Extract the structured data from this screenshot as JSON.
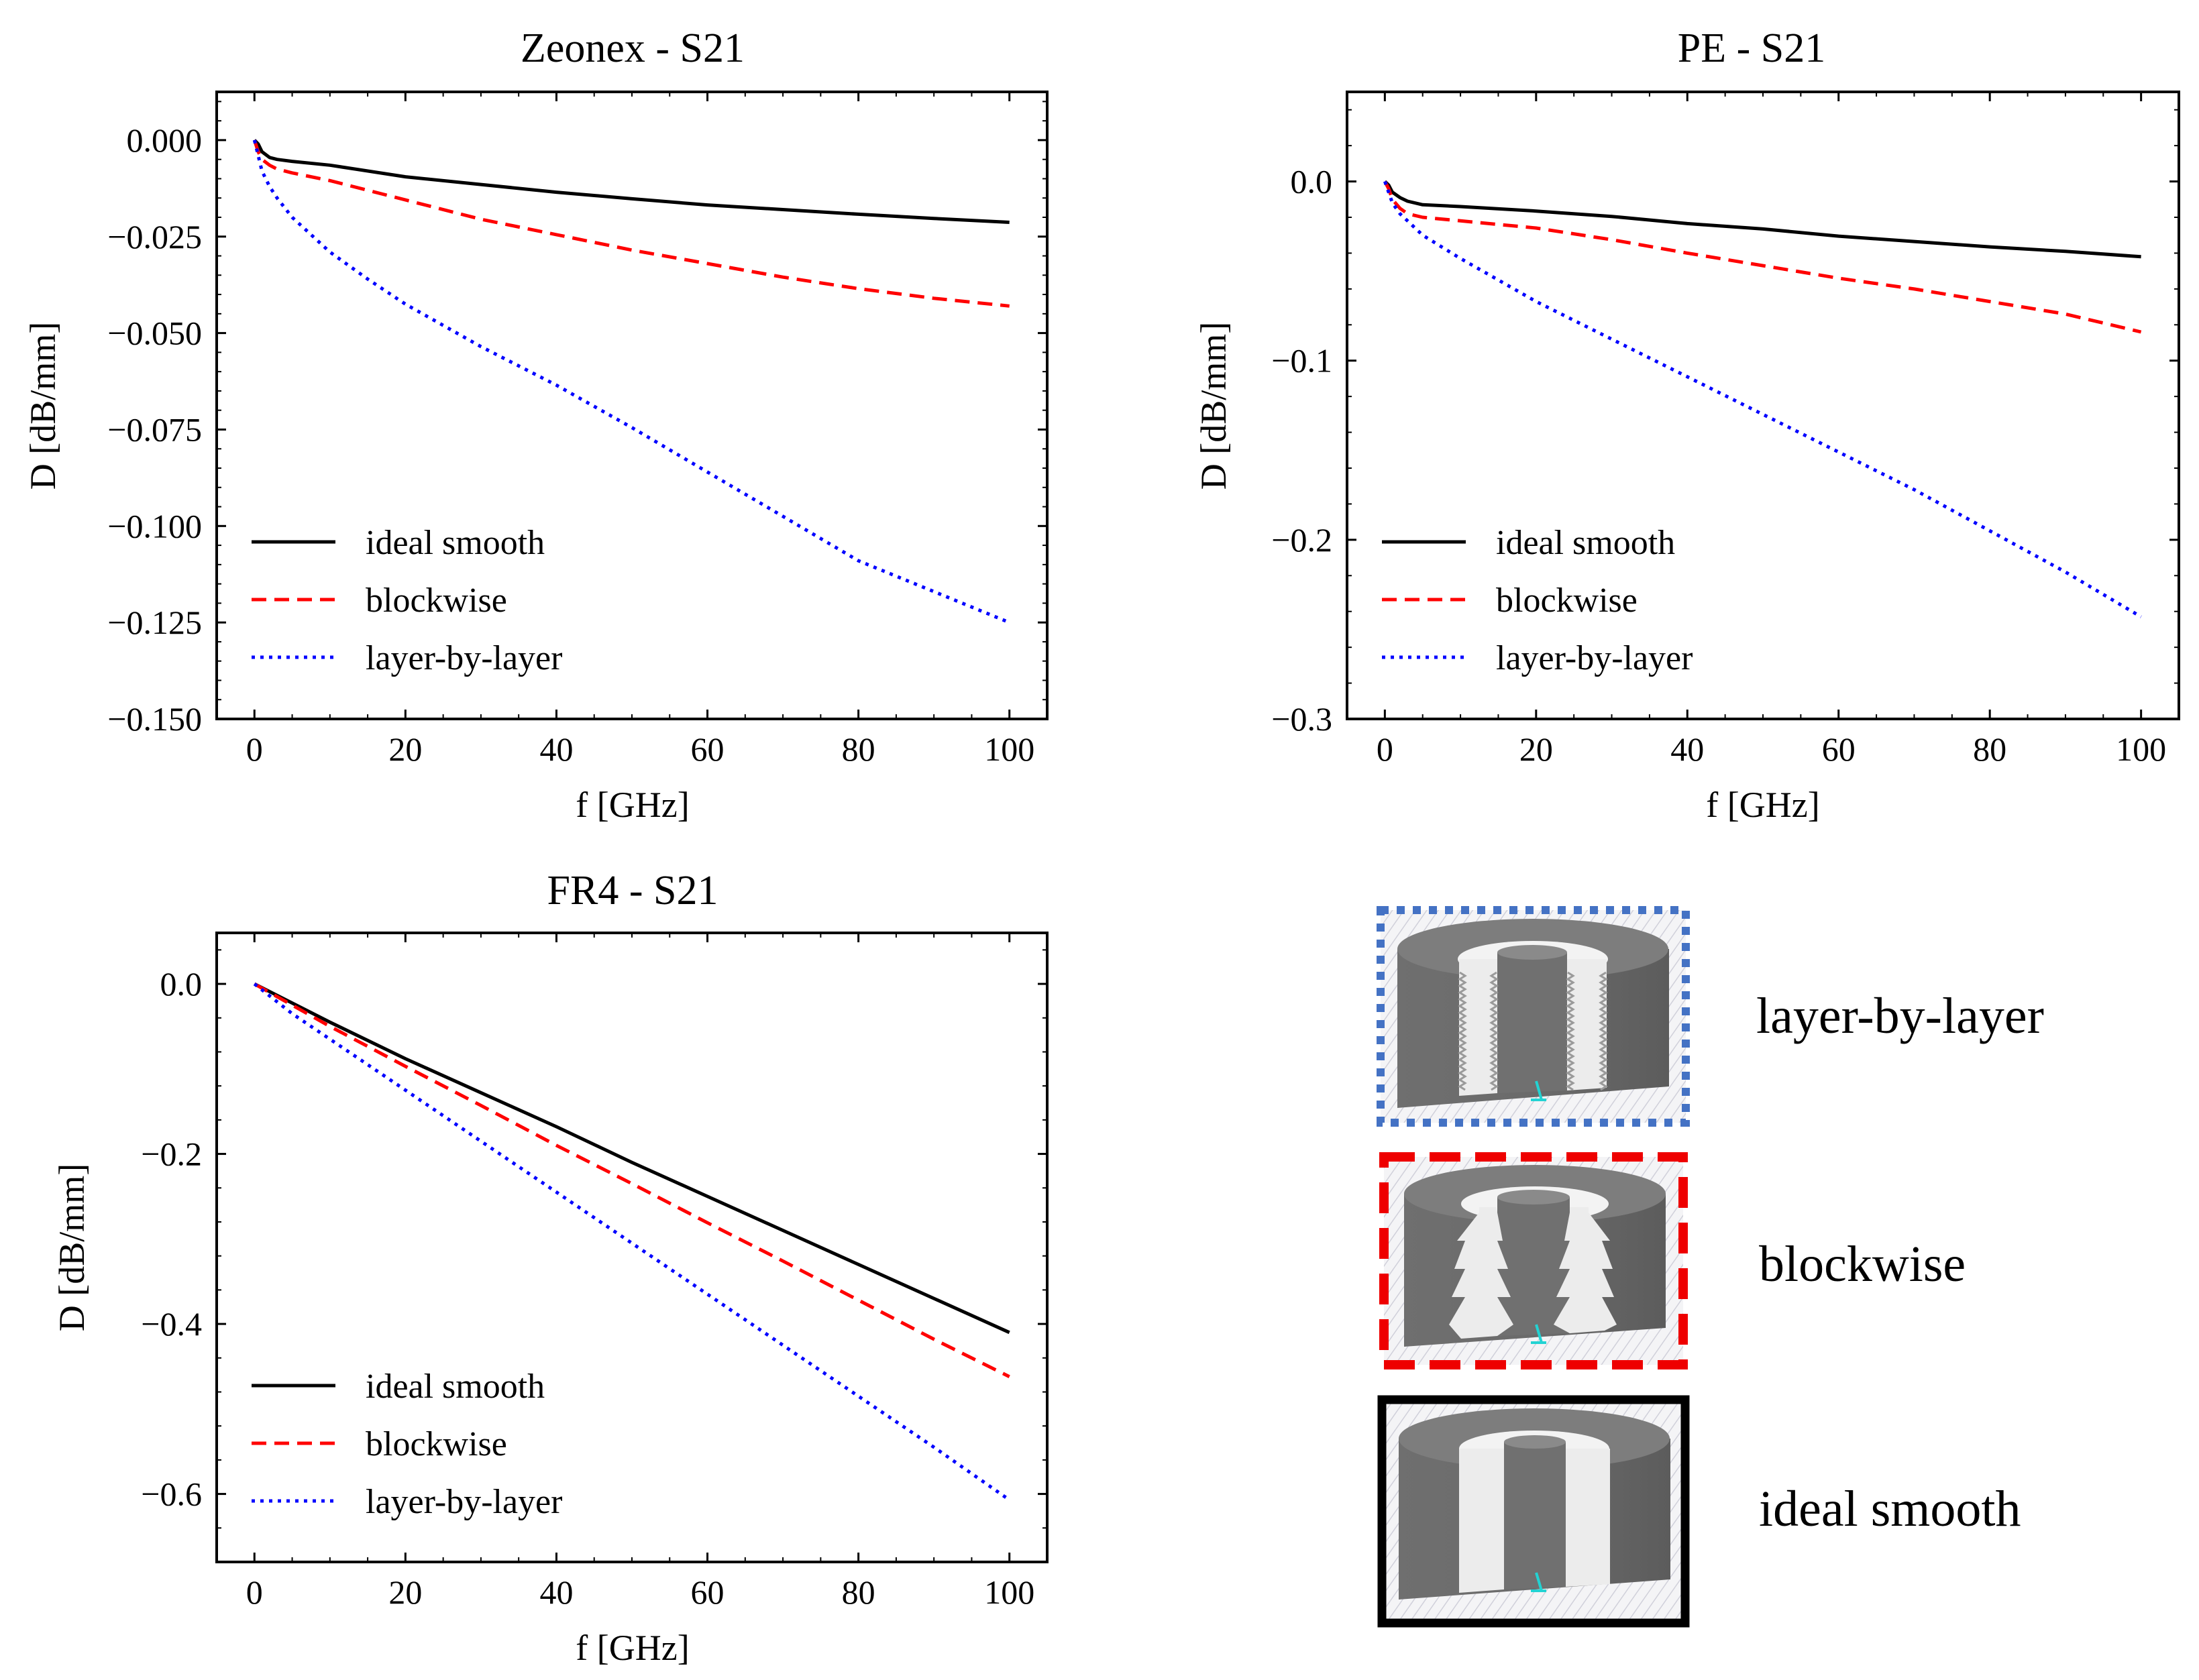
{
  "figure": {
    "legend_titles": {
      "layer": "layer-by-layer",
      "block": "blockwise",
      "ideal": "ideal smooth"
    },
    "series_styles": [
      {
        "name": "ideal smooth",
        "color": "#000000",
        "dash": "solid"
      },
      {
        "name": "blockwise",
        "color": "#ff0000",
        "dash": "dashed"
      },
      {
        "name": "layer-by-layer",
        "color": "#0000ff",
        "dash": "dotted"
      }
    ]
  },
  "chart_data": [
    {
      "type": "line",
      "title": "Zeonex - S21",
      "xlabel": "f [GHz]",
      "ylabel": "D [dB/mm]",
      "xlim": [
        -5,
        105
      ],
      "ylim": [
        -0.15,
        0.0125
      ],
      "xticks": [
        0,
        20,
        40,
        60,
        80,
        100
      ],
      "xtick_labels": [
        "0",
        "20",
        "40",
        "60",
        "80",
        "100"
      ],
      "yticks": [
        0.0,
        -0.025,
        -0.05,
        -0.075,
        -0.1,
        -0.125,
        -0.15
      ],
      "ytick_labels": [
        "0.000",
        "−0.025",
        "−0.050",
        "−0.075",
        "−0.100",
        "−0.125",
        "−0.150"
      ],
      "legend": "lower-left",
      "series": [
        {
          "name": "ideal smooth",
          "x": [
            0,
            0.5,
            1,
            2,
            3,
            5,
            10,
            20,
            30,
            40,
            50,
            60,
            70,
            80,
            90,
            100
          ],
          "y": [
            0,
            -0.001,
            -0.003,
            -0.0045,
            -0.005,
            -0.0055,
            -0.0065,
            -0.0095,
            -0.0115,
            -0.0135,
            -0.0152,
            -0.0168,
            -0.018,
            -0.0192,
            -0.0203,
            -0.0213
          ]
        },
        {
          "name": "blockwise",
          "x": [
            0,
            0.5,
            1,
            2,
            3,
            5,
            10,
            20,
            30,
            40,
            50,
            60,
            70,
            80,
            90,
            100
          ],
          "y": [
            0,
            -0.003,
            -0.005,
            -0.0065,
            -0.0075,
            -0.0085,
            -0.0105,
            -0.0155,
            -0.0205,
            -0.0245,
            -0.0285,
            -0.032,
            -0.0355,
            -0.0385,
            -0.041,
            -0.043
          ]
        },
        {
          "name": "layer-by-layer",
          "x": [
            0,
            0.5,
            1,
            2,
            3,
            5,
            10,
            15,
            20,
            30,
            40,
            50,
            60,
            70,
            80,
            90,
            100
          ],
          "y": [
            0,
            -0.004,
            -0.008,
            -0.012,
            -0.015,
            -0.02,
            -0.029,
            -0.036,
            -0.0425,
            -0.0535,
            -0.0635,
            -0.0745,
            -0.086,
            -0.0975,
            -0.109,
            -0.117,
            -0.125
          ]
        }
      ]
    },
    {
      "type": "line",
      "title": "PE - S21",
      "xlabel": "f [GHz]",
      "ylabel": "D [dB/mm]",
      "xlim": [
        -5,
        105
      ],
      "ylim": [
        -0.3,
        0.05
      ],
      "xticks": [
        0,
        20,
        40,
        60,
        80,
        100
      ],
      "xtick_labels": [
        "0",
        "20",
        "40",
        "60",
        "80",
        "100"
      ],
      "yticks": [
        0.0,
        -0.1,
        -0.2,
        -0.3
      ],
      "ytick_labels": [
        "0.0",
        "−0.1",
        "−0.2",
        "−0.3"
      ],
      "legend": "lower-left",
      "series": [
        {
          "name": "ideal smooth",
          "x": [
            0,
            0.5,
            1,
            2,
            3,
            5,
            10,
            20,
            30,
            40,
            50,
            60,
            70,
            80,
            90,
            100
          ],
          "y": [
            0,
            -0.002,
            -0.006,
            -0.009,
            -0.011,
            -0.013,
            -0.014,
            -0.0165,
            -0.0195,
            -0.0235,
            -0.0265,
            -0.0305,
            -0.0335,
            -0.0365,
            -0.039,
            -0.042
          ]
        },
        {
          "name": "blockwise",
          "x": [
            0,
            0.5,
            1,
            2,
            3,
            5,
            10,
            20,
            30,
            40,
            50,
            60,
            70,
            80,
            90,
            100
          ],
          "y": [
            0,
            -0.004,
            -0.01,
            -0.015,
            -0.018,
            -0.02,
            -0.022,
            -0.026,
            -0.0325,
            -0.04,
            -0.047,
            -0.054,
            -0.06,
            -0.067,
            -0.074,
            -0.084
          ]
        },
        {
          "name": "layer-by-layer",
          "x": [
            0,
            0.5,
            1,
            2,
            3,
            5,
            10,
            15,
            20,
            30,
            40,
            50,
            60,
            70,
            80,
            90,
            100
          ],
          "y": [
            0,
            -0.006,
            -0.012,
            -0.018,
            -0.022,
            -0.03,
            -0.043,
            -0.055,
            -0.067,
            -0.088,
            -0.109,
            -0.13,
            -0.151,
            -0.172,
            -0.195,
            -0.218,
            -0.243
          ]
        }
      ]
    },
    {
      "type": "line",
      "title": "FR4 - S21",
      "xlabel": "f [GHz]",
      "ylabel": "D [dB/mm]",
      "xlim": [
        -5,
        105
      ],
      "ylim": [
        -0.68,
        0.06
      ],
      "xticks": [
        0,
        20,
        40,
        60,
        80,
        100
      ],
      "xtick_labels": [
        "0",
        "20",
        "40",
        "60",
        "80",
        "100"
      ],
      "yticks": [
        0.0,
        -0.2,
        -0.4,
        -0.6
      ],
      "ytick_labels": [
        "0.0",
        "−0.2",
        "−0.4",
        "−0.6"
      ],
      "legend": "lower-left",
      "series": [
        {
          "name": "ideal smooth",
          "x": [
            0,
            10,
            20,
            30,
            40,
            50,
            60,
            70,
            80,
            90,
            100
          ],
          "y": [
            0,
            -0.045,
            -0.088,
            -0.128,
            -0.168,
            -0.21,
            -0.25,
            -0.29,
            -0.33,
            -0.37,
            -0.41
          ]
        },
        {
          "name": "blockwise",
          "x": [
            0,
            10,
            20,
            30,
            40,
            50,
            60,
            70,
            80,
            90,
            100
          ],
          "y": [
            0,
            -0.05,
            -0.097,
            -0.143,
            -0.19,
            -0.235,
            -0.281,
            -0.326,
            -0.372,
            -0.418,
            -0.462
          ]
        },
        {
          "name": "layer-by-layer",
          "x": [
            0,
            5,
            10,
            20,
            30,
            40,
            50,
            60,
            70,
            80,
            90,
            100
          ],
          "y": [
            0,
            -0.035,
            -0.065,
            -0.125,
            -0.185,
            -0.245,
            -0.305,
            -0.365,
            -0.425,
            -0.485,
            -0.545,
            -0.607
          ]
        }
      ]
    }
  ]
}
